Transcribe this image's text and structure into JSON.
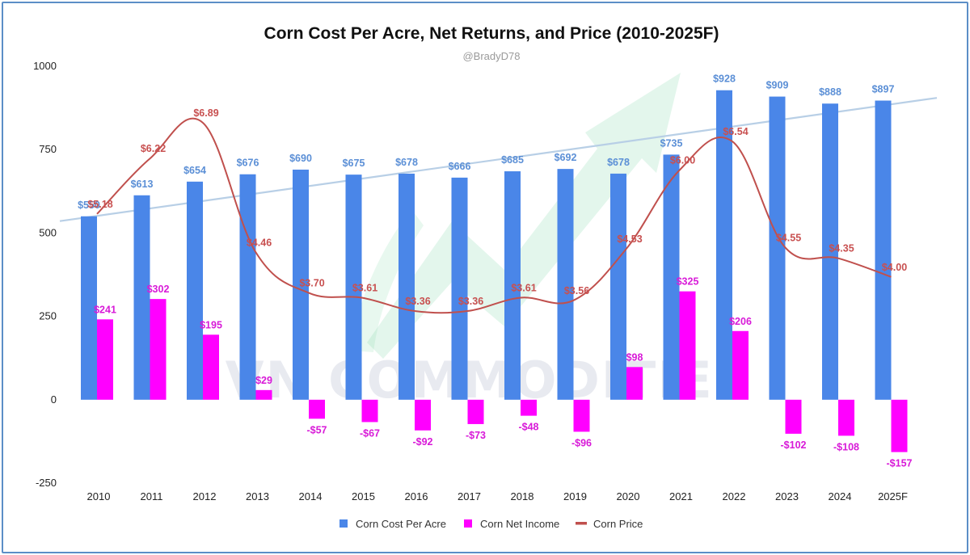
{
  "chart_data": {
    "type": "bar",
    "title": "Corn Cost Per Acre, Net Returns, and Price (2010-2025F)",
    "subtitle": "@BradyD78",
    "watermark": "VN COMMODITIES",
    "categories": [
      "2010",
      "2011",
      "2012",
      "2013",
      "2014",
      "2015",
      "2016",
      "2017",
      "2018",
      "2019",
      "2020",
      "2021",
      "2022",
      "2023",
      "2024",
      "2025F"
    ],
    "ylim": [
      -250,
      1000
    ],
    "yticks": [
      -250,
      0,
      250,
      500,
      750,
      1000
    ],
    "ytick_labels": [
      "-250",
      "0",
      "250",
      "500",
      "750",
      "1000"
    ],
    "grid": false,
    "legend_position": "bottom",
    "series": [
      {
        "name": "Corn Cost Per Acre",
        "kind": "bar",
        "color": "#4a86e8",
        "values": [
          550,
          613,
          654,
          676,
          690,
          675,
          678,
          666,
          685,
          692,
          678,
          735,
          928,
          909,
          888,
          897
        ],
        "labels": [
          "$550",
          "$613",
          "$654",
          "$676",
          "$690",
          "$675",
          "$678",
          "$666",
          "$685",
          "$692",
          "$678",
          "$735",
          "$928",
          "$909",
          "$888",
          "$897"
        ]
      },
      {
        "name": "Corn Net Income",
        "kind": "bar",
        "color": "#ff00ff",
        "values": [
          241,
          302,
          195,
          29,
          -57,
          -67,
          -92,
          -73,
          -48,
          -96,
          98,
          325,
          206,
          -102,
          -108,
          -157
        ],
        "labels": [
          "$241",
          "$302",
          "$195",
          "$29",
          "-$57",
          "-$67",
          "-$92",
          "-$73",
          "-$48",
          "-$96",
          "$98",
          "$325",
          "$206",
          "-$102",
          "-$108",
          "-$157"
        ]
      },
      {
        "name": "Corn Price",
        "kind": "line",
        "color": "#c0504d",
        "values": [
          5.18,
          6.22,
          6.89,
          4.46,
          3.7,
          3.61,
          3.36,
          3.36,
          3.61,
          3.56,
          4.53,
          6.0,
          6.54,
          4.55,
          4.35,
          4.0
        ],
        "labels": [
          "$5.18",
          "$6.22",
          "$6.89",
          "$4.46",
          "$3.70",
          "$3.61",
          "$3.36",
          "$3.36",
          "$3.61",
          "$3.56",
          "$4.53",
          "$6.00",
          "$6.54",
          "$4.55",
          "$4.35",
          "$4.00"
        ]
      }
    ],
    "trend_line": {
      "color": "#b8cfe6",
      "from_value": 555,
      "to_value": 893
    },
    "arrow_color": "#7fd6a8"
  }
}
